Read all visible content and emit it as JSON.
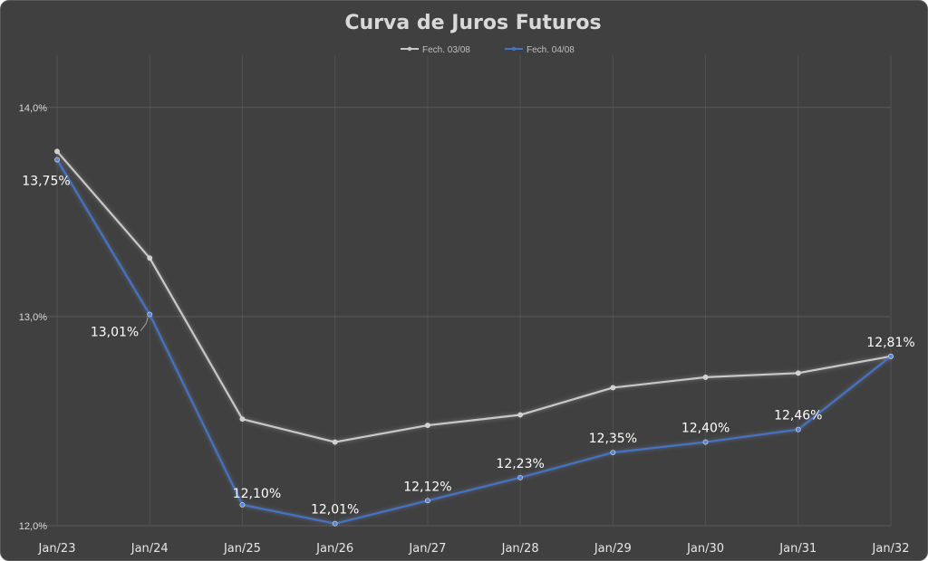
{
  "chart_data": {
    "type": "line",
    "title": "Curva de Juros Futuros",
    "categories": [
      "Jan/23",
      "Jan/24",
      "Jan/25",
      "Jan/26",
      "Jan/27",
      "Jan/28",
      "Jan/29",
      "Jan/30",
      "Jan/31",
      "Jan/32"
    ],
    "y_ticks": [
      "12,0%",
      "13,0%",
      "14,0%"
    ],
    "y_tick_values": [
      12.0,
      13.0,
      14.0
    ],
    "ylim": [
      12.0,
      14.25
    ],
    "grid": true,
    "legend_position": "top",
    "series": [
      {
        "name": "Fech. 03/08",
        "color": "#c8c8c8",
        "values": [
          13.79,
          13.28,
          12.51,
          12.4,
          12.48,
          12.53,
          12.66,
          12.71,
          12.73,
          12.81
        ]
      },
      {
        "name": "Fech. 04/08",
        "color": "#4472c4",
        "values": [
          13.75,
          13.01,
          12.1,
          12.01,
          12.12,
          12.23,
          12.35,
          12.4,
          12.46,
          12.81
        ],
        "data_labels": [
          "13,75%",
          "13,01%",
          "12,10%",
          "12,01%",
          "12,12%",
          "12,23%",
          "12,35%",
          "12,40%",
          "12,46%",
          "12,81%"
        ]
      }
    ]
  }
}
